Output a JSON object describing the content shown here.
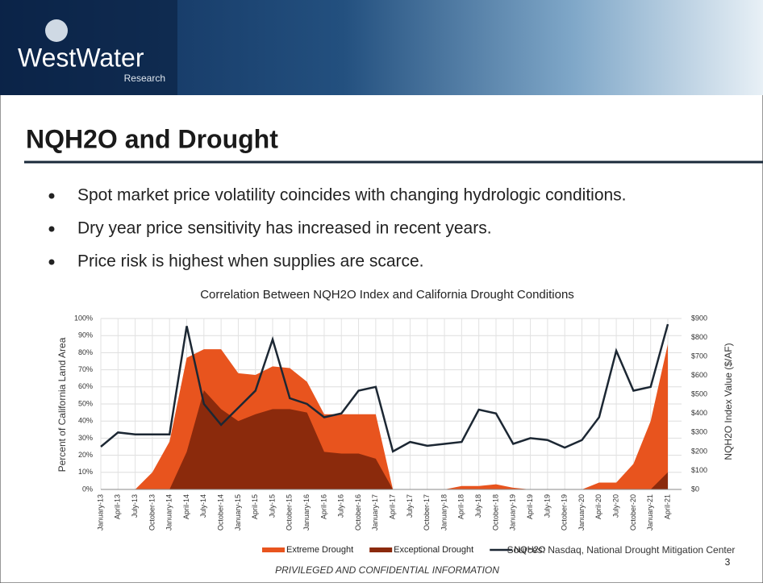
{
  "header": {
    "logo": "WestWater",
    "logo_sub": "Research"
  },
  "title": "NQH2O and Drought",
  "bullets": [
    "Spot market price volatility coincides with changing hydrologic conditions.",
    "Dry year price sensitivity has increased in recent years.",
    "Price risk is highest when supplies are scarce."
  ],
  "chart_data": {
    "type": "area-line",
    "title": "Correlation Between NQH2O Index and California Drought Conditions",
    "y_label": "Percent of California Land Area",
    "y2_label": "NQH2O Index Value ($/AF)",
    "categories": [
      "January-13",
      "April-13",
      "July-13",
      "October-13",
      "January-14",
      "April-14",
      "July-14",
      "October-14",
      "January-15",
      "April-15",
      "July-15",
      "October-15",
      "January-16",
      "April-16",
      "July-16",
      "October-16",
      "January-17",
      "April-17",
      "July-17",
      "October-17",
      "January-18",
      "April-18",
      "July-18",
      "October-18",
      "January-19",
      "April-19",
      "July-19",
      "October-19",
      "January-20",
      "April-20",
      "July-20",
      "October-20",
      "January-21",
      "April-21"
    ],
    "series": [
      {
        "name": "Extreme Drought",
        "color": "#e8541e",
        "axis": "y",
        "values": [
          0,
          0,
          0,
          10,
          28,
          77,
          82,
          82,
          68,
          67,
          72,
          71,
          63,
          44,
          44,
          44,
          44,
          0,
          0,
          0,
          0,
          2,
          2,
          3,
          1,
          0,
          0,
          0,
          0,
          4,
          4,
          15,
          40,
          85
        ]
      },
      {
        "name": "Exceptional Drought",
        "color": "#8b2a0c",
        "axis": "y",
        "values": [
          0,
          0,
          0,
          0,
          0,
          22,
          58,
          47,
          40,
          44,
          47,
          47,
          45,
          22,
          21,
          21,
          18,
          0,
          0,
          0,
          0,
          0,
          0,
          0,
          0,
          0,
          0,
          0,
          0,
          0,
          0,
          0,
          0,
          10
        ]
      },
      {
        "name": "NQH2O",
        "color": "#1c2733",
        "axis": "y2",
        "values": [
          225,
          300,
          290,
          290,
          290,
          860,
          450,
          340,
          430,
          520,
          790,
          480,
          450,
          380,
          400,
          520,
          540,
          200,
          250,
          230,
          240,
          250,
          420,
          400,
          240,
          270,
          260,
          220,
          260,
          380,
          730,
          520,
          540,
          870
        ]
      }
    ],
    "ylim": [
      0,
      100
    ],
    "yticks": [
      {
        "value": 0,
        "label": "0%"
      },
      {
        "value": 10,
        "label": "10%"
      },
      {
        "value": 20,
        "label": "20%"
      },
      {
        "value": 30,
        "label": "30%"
      },
      {
        "value": 40,
        "label": "40%"
      },
      {
        "value": 50,
        "label": "50%"
      },
      {
        "value": 60,
        "label": "60%"
      },
      {
        "value": 70,
        "label": "70%"
      },
      {
        "value": 80,
        "label": "80%"
      },
      {
        "value": 90,
        "label": "90%"
      },
      {
        "value": 100,
        "label": "100%"
      }
    ],
    "y2lim": [
      0,
      900
    ],
    "y2ticks": [
      {
        "value": 0,
        "label": "$0"
      },
      {
        "value": 100,
        "label": "$100"
      },
      {
        "value": 200,
        "label": "$200"
      },
      {
        "value": 300,
        "label": "$300"
      },
      {
        "value": 400,
        "label": "$400"
      },
      {
        "value": 500,
        "label": "$500"
      },
      {
        "value": 600,
        "label": "$600"
      },
      {
        "value": 700,
        "label": "$700"
      },
      {
        "value": 800,
        "label": "$800"
      },
      {
        "value": 900,
        "label": "$900"
      }
    ],
    "grid": true,
    "sources": "Sources: Nasdaq, National Drought Mitigation Center"
  },
  "footer": {
    "confidential": "PRIVILEGED AND CONFIDENTIAL INFORMATION",
    "page": "3"
  }
}
